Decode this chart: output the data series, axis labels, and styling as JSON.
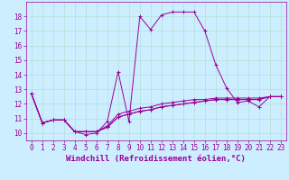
{
  "background_color": "#cceeff",
  "line_color": "#990099",
  "x_values": [
    0,
    1,
    2,
    3,
    4,
    5,
    6,
    7,
    8,
    9,
    10,
    11,
    12,
    13,
    14,
    15,
    16,
    17,
    18,
    19,
    20,
    21,
    22,
    23
  ],
  "lines": [
    [
      12.7,
      10.7,
      10.9,
      10.9,
      10.1,
      9.9,
      10.0,
      10.8,
      14.2,
      10.8,
      18.0,
      17.1,
      18.1,
      18.3,
      18.3,
      18.3,
      17.0,
      14.7,
      13.1,
      12.1,
      12.2,
      11.8,
      12.5,
      12.5
    ],
    [
      12.7,
      10.7,
      10.9,
      10.9,
      10.1,
      10.1,
      10.1,
      10.4,
      11.1,
      11.3,
      11.5,
      11.6,
      11.8,
      11.9,
      12.0,
      12.1,
      12.2,
      12.3,
      12.3,
      12.3,
      12.3,
      12.3,
      12.5,
      12.5
    ],
    [
      12.7,
      10.7,
      10.9,
      10.9,
      10.1,
      10.1,
      10.1,
      10.4,
      11.1,
      11.3,
      11.5,
      11.6,
      11.8,
      11.9,
      12.0,
      12.1,
      12.2,
      12.3,
      12.3,
      12.3,
      12.3,
      12.3,
      12.5,
      12.5
    ],
    [
      12.7,
      10.7,
      10.9,
      10.9,
      10.1,
      10.1,
      10.1,
      10.5,
      11.3,
      11.5,
      11.7,
      11.8,
      12.0,
      12.1,
      12.2,
      12.3,
      12.3,
      12.4,
      12.4,
      12.4,
      12.4,
      12.4,
      12.5,
      12.5
    ]
  ],
  "ylim": [
    9.5,
    19.0
  ],
  "xlim": [
    -0.5,
    23.5
  ],
  "yticks": [
    10,
    11,
    12,
    13,
    14,
    15,
    16,
    17,
    18
  ],
  "xticks": [
    0,
    1,
    2,
    3,
    4,
    5,
    6,
    7,
    8,
    9,
    10,
    11,
    12,
    13,
    14,
    15,
    16,
    17,
    18,
    19,
    20,
    21,
    22,
    23
  ],
  "xlabel": "Windchill (Refroidissement éolien,°C)",
  "marker": "+",
  "markersize": 3,
  "linewidth": 0.7,
  "grid_color": "#aaddcc",
  "xlabel_fontsize": 6.5,
  "tick_fontsize": 5.5,
  "tick_color": "#990099",
  "label_color": "#990099",
  "grid_linewidth": 0.4
}
